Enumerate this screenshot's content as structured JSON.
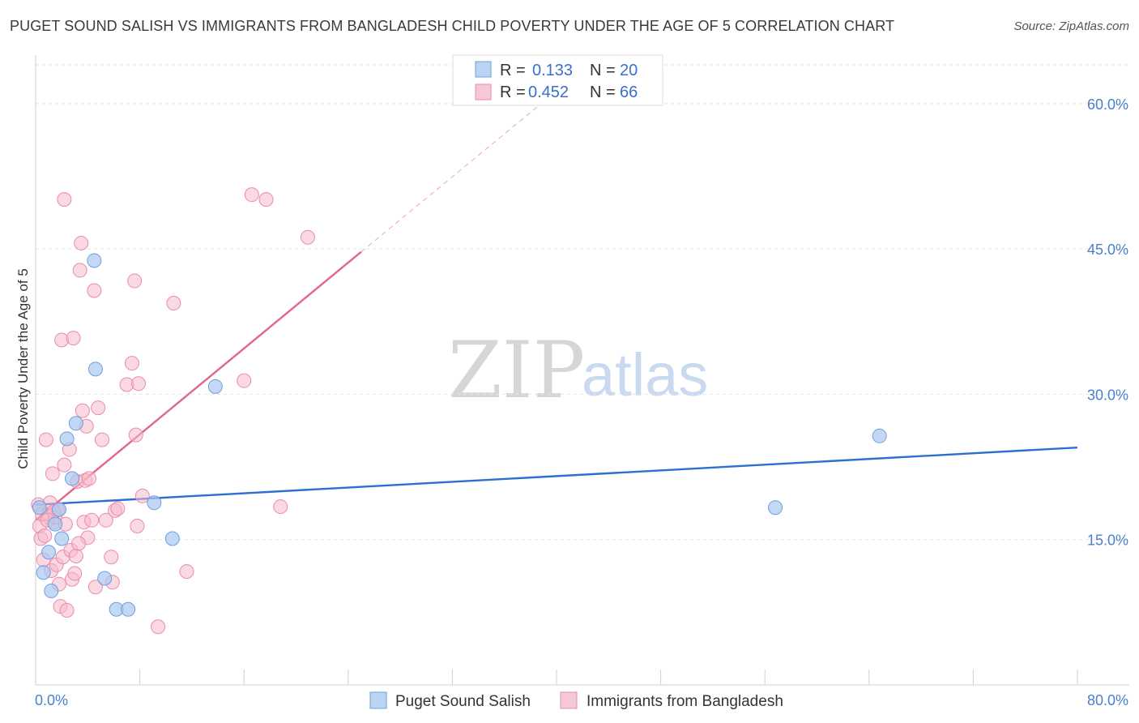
{
  "header": {
    "title": "PUGET SOUND SALISH VS IMMIGRANTS FROM BANGLADESH CHILD POVERTY UNDER THE AGE OF 5 CORRELATION CHART",
    "source": "Source: ZipAtlas.com"
  },
  "watermark": {
    "zip": "ZIP",
    "atlas": "atlas"
  },
  "colors": {
    "blue_fill": "#a9c8ef",
    "blue_stroke": "#6f9fdc",
    "blue_line": "#2d6fd0",
    "pink_fill": "#f6b9cc",
    "pink_stroke": "#e98ca9",
    "pink_line": "#e0668f"
  },
  "chart_data": {
    "type": "scatter",
    "title": "PUGET SOUND SALISH VS IMMIGRANTS FROM BANGLADESH CHILD POVERTY UNDER THE AGE OF 5 CORRELATION CHART",
    "xlabel": "",
    "ylabel": "Child Poverty Under the Age of 5",
    "xlim": [
      0,
      80
    ],
    "ylim": [
      0,
      64
    ],
    "x_tick_labels": [
      "0.0%",
      "80.0%"
    ],
    "y_ticks": [
      15,
      30,
      45,
      60
    ],
    "y_tick_labels": [
      "15.0%",
      "30.0%",
      "45.0%",
      "60.0%"
    ],
    "grid": true,
    "legend": {
      "position": "top-center",
      "entries": [
        {
          "r_label": "R =",
          "r_value": "0.133",
          "n_label": "N =",
          "n_value": "20"
        },
        {
          "r_label": "R =",
          "r_value": "0.452",
          "n_label": "N =",
          "n_value": "66"
        }
      ]
    },
    "series": [
      {
        "name": "Puget Sound Salish",
        "color": "blue",
        "trend": {
          "x": [
            0,
            80
          ],
          "y": [
            18.6,
            24.5
          ],
          "dashed_extension": false
        },
        "points": [
          [
            0.3,
            18.3
          ],
          [
            0.6,
            11.6
          ],
          [
            1.0,
            13.7
          ],
          [
            1.2,
            9.7
          ],
          [
            1.5,
            16.6
          ],
          [
            1.8,
            18.1
          ],
          [
            2.0,
            15.1
          ],
          [
            2.4,
            25.4
          ],
          [
            2.8,
            21.3
          ],
          [
            3.1,
            27.0
          ],
          [
            4.5,
            43.8
          ],
          [
            4.6,
            32.6
          ],
          [
            5.3,
            11.0
          ],
          [
            6.2,
            7.8
          ],
          [
            7.1,
            7.8
          ],
          [
            9.1,
            18.8
          ],
          [
            10.5,
            15.1
          ],
          [
            13.8,
            30.8
          ],
          [
            56.8,
            18.3
          ],
          [
            64.8,
            25.7
          ]
        ]
      },
      {
        "name": "Immigrants from Bangladesh",
        "color": "pink",
        "trend": {
          "x": [
            0,
            25
          ],
          "y": [
            17.0,
            44.7
          ],
          "dashed_extension": true,
          "dashed_to": {
            "x": 40,
            "y": 61.3
          }
        },
        "points": [
          [
            0.2,
            18.6
          ],
          [
            0.3,
            16.4
          ],
          [
            0.4,
            15.1
          ],
          [
            0.5,
            17.6
          ],
          [
            0.6,
            12.9
          ],
          [
            0.7,
            15.4
          ],
          [
            0.8,
            25.3
          ],
          [
            1.0,
            17.6
          ],
          [
            1.1,
            18.8
          ],
          [
            1.2,
            11.8
          ],
          [
            1.3,
            21.8
          ],
          [
            1.4,
            16.8
          ],
          [
            1.5,
            17.3
          ],
          [
            1.6,
            12.4
          ],
          [
            1.7,
            18.1
          ],
          [
            1.8,
            10.4
          ],
          [
            1.9,
            8.1
          ],
          [
            2.0,
            35.6
          ],
          [
            2.1,
            13.2
          ],
          [
            2.2,
            22.7
          ],
          [
            2.3,
            16.6
          ],
          [
            2.4,
            7.7
          ],
          [
            2.6,
            24.3
          ],
          [
            2.7,
            13.9
          ],
          [
            2.8,
            10.9
          ],
          [
            2.9,
            35.8
          ],
          [
            3.0,
            11.5
          ],
          [
            3.1,
            13.3
          ],
          [
            3.2,
            21.0
          ],
          [
            3.4,
            42.8
          ],
          [
            3.5,
            45.6
          ],
          [
            3.6,
            28.3
          ],
          [
            3.7,
            16.8
          ],
          [
            3.8,
            21.1
          ],
          [
            3.9,
            26.7
          ],
          [
            4.0,
            15.2
          ],
          [
            4.1,
            21.3
          ],
          [
            4.3,
            17.0
          ],
          [
            4.5,
            40.7
          ],
          [
            4.6,
            10.1
          ],
          [
            4.8,
            28.6
          ],
          [
            5.1,
            25.3
          ],
          [
            5.4,
            17.0
          ],
          [
            5.8,
            13.2
          ],
          [
            5.9,
            10.6
          ],
          [
            6.1,
            18.0
          ],
          [
            6.3,
            18.2
          ],
          [
            7.0,
            31.0
          ],
          [
            7.4,
            33.2
          ],
          [
            7.6,
            41.7
          ],
          [
            7.7,
            25.8
          ],
          [
            7.8,
            16.4
          ],
          [
            7.9,
            31.1
          ],
          [
            8.2,
            19.5
          ],
          [
            9.4,
            6.0
          ],
          [
            10.6,
            39.4
          ],
          [
            11.6,
            11.7
          ],
          [
            16.0,
            31.4
          ],
          [
            16.6,
            50.6
          ],
          [
            17.7,
            50.1
          ],
          [
            18.8,
            18.4
          ],
          [
            20.9,
            46.2
          ],
          [
            2.2,
            50.1
          ],
          [
            1.4,
            17.9
          ],
          [
            0.9,
            17.0
          ],
          [
            3.3,
            14.6
          ]
        ]
      }
    ]
  },
  "bottom_legend": {
    "items": [
      {
        "label": "Puget Sound Salish"
      },
      {
        "label": "Immigrants from Bangladesh"
      }
    ]
  }
}
